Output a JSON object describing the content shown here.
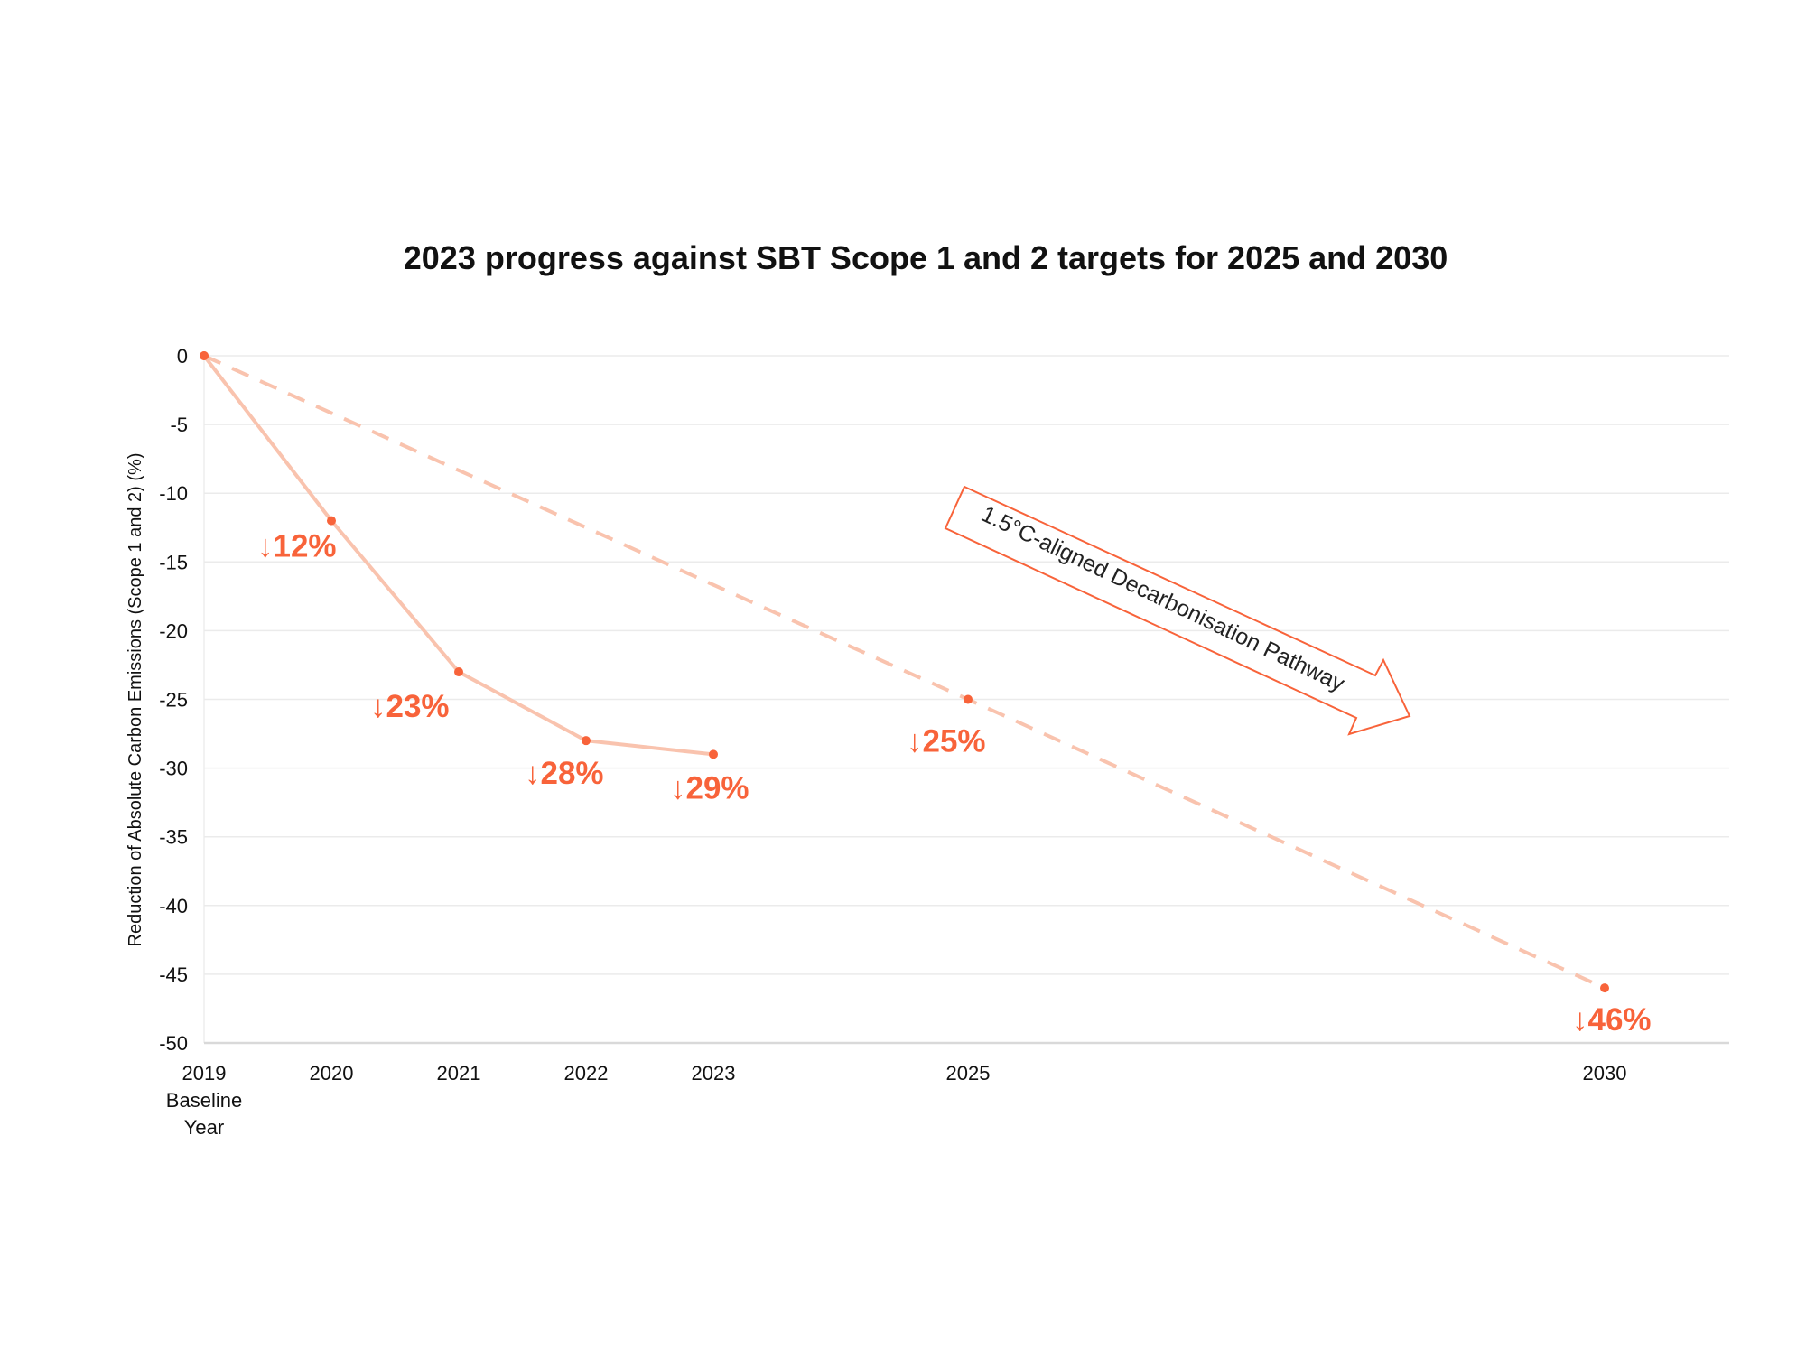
{
  "chart_data": {
    "type": "line",
    "title": "2023 progress against SBT Scope 1 and 2 targets for 2025 and 2030",
    "xlabel": "",
    "ylabel": "Reduction of Absolute Carbon Emissions (Scope 1 and 2) (%)",
    "ylim": [
      -50,
      0
    ],
    "xlim": [
      2019,
      2030
    ],
    "y_ticks": [
      "0",
      "-5",
      "-10",
      "-15",
      "-20",
      "-25",
      "-30",
      "-35",
      "-40",
      "-45",
      "-50"
    ],
    "x_ticks": [
      {
        "x": 2019,
        "label": "2019",
        "sublabel": [
          "Baseline",
          "Year"
        ]
      },
      {
        "x": 2020,
        "label": "2020"
      },
      {
        "x": 2021,
        "label": "2021"
      },
      {
        "x": 2022,
        "label": "2022"
      },
      {
        "x": 2023,
        "label": "2023"
      },
      {
        "x": 2025,
        "label": "2025"
      },
      {
        "x": 2030,
        "label": "2030"
      }
    ],
    "grid": true,
    "series": [
      {
        "style": "solid",
        "x": [
          2019,
          2020,
          2021,
          2022,
          2023
        ],
        "y": [
          0,
          -12,
          -23,
          -28,
          -29
        ],
        "labels": [
          "",
          "↓12%",
          "↓23%",
          "↓28%",
          "↓29%"
        ]
      },
      {
        "style": "dashed",
        "x": [
          2019,
          2025,
          2030
        ],
        "y": [
          0,
          -25,
          -46
        ],
        "labels": [
          "",
          "↓25%",
          "↓46%"
        ]
      }
    ],
    "annotation": "1.5°C-aligned Decarbonisation Pathway",
    "colors": {
      "line": "#f9c3ae",
      "marker": "#f8633a",
      "label": "#f8633a",
      "grid": "#ebebeb",
      "arrow": "#f8633a"
    }
  }
}
